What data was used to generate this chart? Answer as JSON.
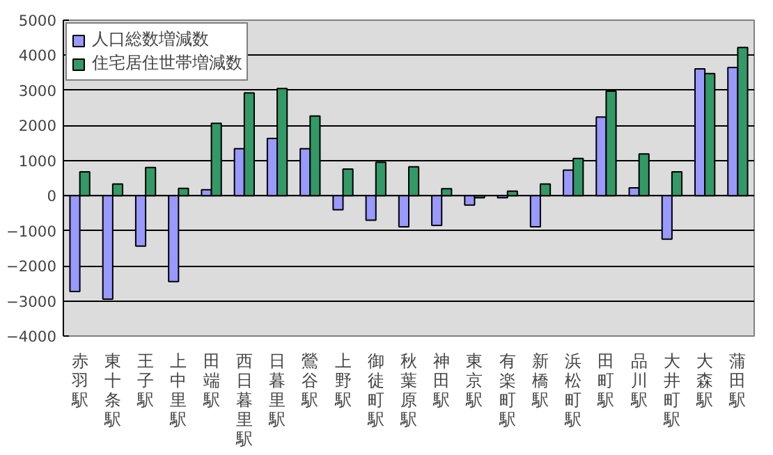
{
  "chart_data": {
    "type": "bar",
    "categories": [
      "赤羽駅",
      "東十条駅",
      "王子駅",
      "上中里駅",
      "田端駅",
      "西日暮里駅",
      "日暮里駅",
      "鶯谷駅",
      "上野駅",
      "御徒町駅",
      "秋葉原駅",
      "神田駅",
      "東京駅",
      "有楽町駅",
      "新橋駅",
      "浜松町駅",
      "田町駅",
      "品川駅",
      "大井町駅",
      "大森駅",
      "蒲田駅"
    ],
    "series": [
      {
        "name": "人口総数増減数",
        "color": "#9999ff",
        "values": [
          -2730,
          -2950,
          -1440,
          -2450,
          170,
          1340,
          1630,
          1340,
          -400,
          -700,
          -890,
          -850,
          -270,
          -60,
          -890,
          730,
          2240,
          220,
          -1240,
          3610,
          3650
        ]
      },
      {
        "name": "住宅居住世帯増減数",
        "color": "#339966",
        "values": [
          680,
          330,
          800,
          210,
          2060,
          2930,
          3050,
          2270,
          760,
          950,
          820,
          200,
          -60,
          130,
          330,
          1060,
          2980,
          1190,
          680,
          3480,
          4220
        ]
      }
    ],
    "ylim": [
      -4000,
      5000
    ],
    "yticks": [
      -4000,
      -3000,
      -2000,
      -1000,
      0,
      1000,
      2000,
      3000,
      4000,
      5000
    ],
    "grid": "y",
    "legend": "top left"
  }
}
